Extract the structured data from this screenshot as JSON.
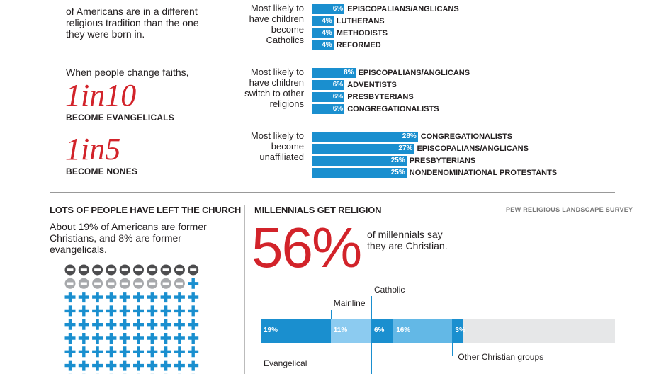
{
  "left_top": {
    "intro": "of Americans are in a different religious tradition than the one they were born in.",
    "change_intro": "When people change faiths,",
    "stat1_big": "1in10",
    "stat1_label": "BECOME EVANGELICALS",
    "stat2_big": "1in5",
    "stat2_label": "BECOME NONES"
  },
  "chart_data": [
    {
      "type": "bar",
      "title": "Most likely to have children become Catholics",
      "categories": [
        "EPISCOPALIANS/ANGLICANS",
        "LUTHERANS",
        "METHODISTS",
        "REFORMED"
      ],
      "values": [
        6,
        4,
        4,
        4
      ],
      "value_labels": [
        "6%",
        "4%",
        "4%",
        "4%"
      ]
    },
    {
      "type": "bar",
      "title": "Most likely to have children switch to other religions",
      "categories": [
        "EPISCOPALIANS/ANGLICANS",
        "ADVENTISTS",
        "PRESBYTERIANS",
        "CONGREGATIONALISTS"
      ],
      "values": [
        8,
        6,
        6,
        6
      ],
      "value_labels": [
        "8%",
        "6%",
        "6%",
        "6%"
      ]
    },
    {
      "type": "bar",
      "title": "Most likely to become unaffiliated",
      "categories": [
        "CONGREGATIONALISTS",
        "EPISCOPALIANS/ANGLICANS",
        "PRESBYTERIANS",
        "NONDENOMINATIONAL PROTESTANTS"
      ],
      "values": [
        28,
        27,
        25,
        25
      ],
      "value_labels": [
        "28%",
        "27%",
        "25%",
        "25%"
      ]
    },
    {
      "type": "bar",
      "title": "",
      "categories": [
        "Evangelical",
        "Mainline",
        "Catholic",
        "",
        "Other Christian groups"
      ],
      "values": [
        19,
        11,
        6,
        16,
        3
      ],
      "value_labels": [
        "19%",
        "11%",
        "6%",
        "16%",
        "3%"
      ],
      "colors": [
        "#1a8fcf",
        "#8ccbf0",
        "#1a8fcf",
        "#63b8e6",
        "#1a8fcf"
      ],
      "remainder_color": "#e6e7e8"
    }
  ],
  "group_labels": {
    "g1": "Most likely to have children become Catholics",
    "g2": "Most likely to have children switch to other religions",
    "g3": "Most likely to become unaffiliated"
  },
  "left_bottom": {
    "title": "LOTS OF PEOPLE HAVE LEFT THE CHURCH",
    "text": "About 19% of Americans are former Christians, and 8% are former evangelicals."
  },
  "right_bottom": {
    "title": "MILLENNIALS GET RELIGION",
    "source": "PEW RELIGIOUS LANDSCAPE SURVEY",
    "big": "56%",
    "text": "of millennials say they are Christian."
  },
  "icon_grid": {
    "cols": 10,
    "rows": 9,
    "minus_dark": 10,
    "minus_light": 9,
    "minus_dark_color": "#4d4d4f",
    "minus_light_color": "#a7a9ac",
    "plus_color": "#1a8fcf"
  },
  "colors": {
    "bar": "#1a8fcf",
    "accent_red": "#d2232a"
  }
}
